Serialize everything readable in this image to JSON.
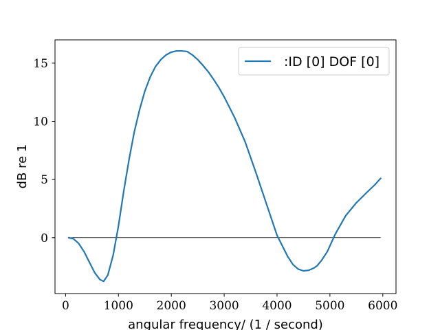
{
  "chart_data": {
    "type": "line",
    "title": "",
    "xlabel": "angular frequency/ (1 / second)",
    "ylabel": "dB re 1",
    "xlim": [
      -200,
      6250
    ],
    "ylim": [
      -4.8,
      17.0
    ],
    "xticks": [
      0,
      1000,
      2000,
      3000,
      4000,
      5000,
      6000
    ],
    "yticks": [
      0,
      5,
      10,
      15
    ],
    "grid": false,
    "legend_position": "top-right",
    "reference_line": {
      "y": 0,
      "x_range": [
        60,
        5960
      ],
      "color": "#000000"
    },
    "series": [
      {
        "name": ":ID [0] DOF [0]",
        "color": "#1f77b4",
        "x": [
          60,
          150,
          250,
          350,
          450,
          550,
          650,
          720,
          800,
          900,
          1000,
          1100,
          1200,
          1300,
          1400,
          1500,
          1600,
          1700,
          1800,
          1900,
          2000,
          2100,
          2200,
          2300,
          2400,
          2500,
          2600,
          2700,
          2800,
          2900,
          3000,
          3200,
          3400,
          3600,
          3800,
          4000,
          4200,
          4300,
          4400,
          4500,
          4600,
          4700,
          4760,
          4850,
          4950,
          5100,
          5300,
          5500,
          5700,
          5850,
          5960
        ],
        "y": [
          0.0,
          -0.1,
          -0.5,
          -1.2,
          -2.1,
          -3.0,
          -3.6,
          -3.75,
          -3.2,
          -1.5,
          1.0,
          4.0,
          6.7,
          9.1,
          11.0,
          12.6,
          13.8,
          14.7,
          15.3,
          15.7,
          15.95,
          16.05,
          16.05,
          16.0,
          15.7,
          15.3,
          14.8,
          14.25,
          13.6,
          12.9,
          12.1,
          10.3,
          8.2,
          5.6,
          2.9,
          0.2,
          -1.6,
          -2.3,
          -2.7,
          -2.85,
          -2.8,
          -2.6,
          -2.4,
          -1.9,
          -1.2,
          0.3,
          1.9,
          3.0,
          3.9,
          4.55,
          5.1
        ]
      }
    ]
  }
}
